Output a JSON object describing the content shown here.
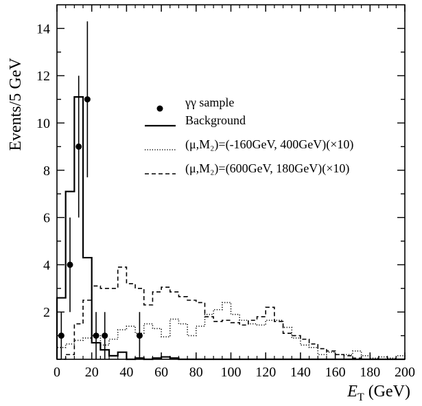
{
  "chart_data": {
    "type": "histogram",
    "xlabel": "E_T (GeV)",
    "xlabel_main": "E",
    "xlabel_sub": "T",
    "xlabel_unit": " (GeV)",
    "ylabel": "Events/5 GeV",
    "xlim": [
      0,
      200
    ],
    "ylim": [
      0,
      15
    ],
    "xticks": [
      "0",
      "20",
      "40",
      "60",
      "80",
      "100",
      "120",
      "140",
      "160",
      "180",
      "200"
    ],
    "yticks": [
      "2",
      "4",
      "6",
      "8",
      "10",
      "12",
      "14"
    ],
    "grid": false,
    "legend_position": "top-right",
    "legend": [
      {
        "id": "data",
        "label": "γγ sample",
        "style": "marker"
      },
      {
        "id": "bkg",
        "label": "Background",
        "style": "solid"
      },
      {
        "id": "sig1",
        "label": "(μ,M₂)=(-160GeV, 400GeV)(×10)",
        "style": "dotted"
      },
      {
        "id": "sig2",
        "label": "(μ,M₂)=(600GeV, 180GeV)(×10)",
        "style": "dashed"
      }
    ],
    "bin_edges": [
      0,
      5,
      10,
      15,
      20,
      25,
      30,
      35,
      40,
      45,
      50,
      55,
      60,
      65,
      70,
      75,
      80,
      85,
      90,
      95,
      100,
      105,
      110,
      115,
      120,
      125,
      130,
      135,
      140,
      145,
      150,
      155,
      160,
      165,
      170,
      175,
      180,
      185,
      190,
      195,
      200
    ],
    "series": [
      {
        "id": "bkg",
        "name": "Background",
        "line_style": "solid",
        "values": [
          2.6,
          7.1,
          11.1,
          4.3,
          0.7,
          0.4,
          0.15,
          0.3,
          0.0,
          0.05,
          0.0,
          0.05,
          0.1,
          0.05,
          0,
          0,
          0,
          0,
          0,
          0,
          0,
          0,
          0,
          0,
          0,
          0,
          0,
          0,
          0,
          0,
          0,
          0,
          0,
          0,
          0,
          0,
          0,
          0,
          0,
          0
        ]
      },
      {
        "id": "sig1",
        "name": "(μ,M₂)=(-160GeV, 400GeV)(×10)",
        "line_style": "dotted",
        "values": [
          0.5,
          0.65,
          0.8,
          0.9,
          1.0,
          0.6,
          0.85,
          1.25,
          1.4,
          1.1,
          1.5,
          1.3,
          0.95,
          1.7,
          1.5,
          1.0,
          1.4,
          1.9,
          2.1,
          2.4,
          1.9,
          1.65,
          1.5,
          1.45,
          1.65,
          1.65,
          1.35,
          0.9,
          0.6,
          0.5,
          0.2,
          0.3,
          0.2,
          0.2,
          0.35,
          0.15,
          0.05,
          0.1,
          0.05,
          0.15
        ]
      },
      {
        "id": "sig2",
        "name": "(μ,M₂)=(600GeV, 180GeV)(×10)",
        "line_style": "dashed",
        "values": [
          0.0,
          0.2,
          1.5,
          2.5,
          3.1,
          3.0,
          3.0,
          3.9,
          3.2,
          3.0,
          2.3,
          2.85,
          3.05,
          2.85,
          2.65,
          2.5,
          2.4,
          1.8,
          1.6,
          1.65,
          1.55,
          1.45,
          1.65,
          1.8,
          2.2,
          1.6,
          1.1,
          1.0,
          0.85,
          0.65,
          0.45,
          0.35,
          0.2,
          0.15,
          0.05,
          0,
          0,
          0,
          0,
          0
        ]
      }
    ],
    "data_points": {
      "name": "γγ sample",
      "points": [
        {
          "x": 2.5,
          "y": 1,
          "err": 1.0
        },
        {
          "x": 7.5,
          "y": 4,
          "err": 2.0
        },
        {
          "x": 12.5,
          "y": 9,
          "err": 3.0
        },
        {
          "x": 17.5,
          "y": 11,
          "err": 3.3
        },
        {
          "x": 22.5,
          "y": 1,
          "err": 1.0
        },
        {
          "x": 27.5,
          "y": 1,
          "err": 1.0
        },
        {
          "x": 47.5,
          "y": 1,
          "err": 1.0
        }
      ]
    }
  }
}
